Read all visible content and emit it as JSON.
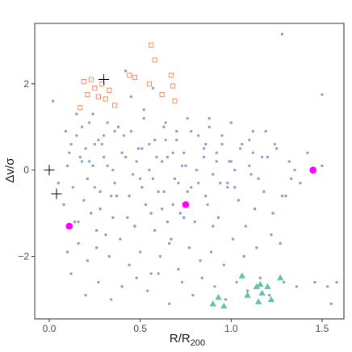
{
  "chart_data": {
    "type": "scatter",
    "xlabel": "R/R",
    "xlabel_sub": "200",
    "ylabel": "Δv/σ",
    "xlim": [
      -0.08,
      1.62
    ],
    "ylim": [
      -3.45,
      3.4
    ],
    "xticks": [
      0.0,
      0.5,
      1.0,
      1.5
    ],
    "xtick_labels": [
      "0.0",
      "0.5",
      "1.0",
      "1.5"
    ],
    "yticks": [
      -2,
      0,
      2
    ],
    "ytick_labels": [
      "−2",
      "0",
      "2"
    ],
    "grid": false,
    "series": [
      {
        "marker": "dot",
        "color": "#8DA0CB",
        "x": [
          0.02,
          0.05,
          0.1,
          0.12,
          0.15,
          0.18,
          0.2,
          0.22,
          0.24,
          0.25,
          0.27,
          0.3,
          0.32,
          0.34,
          0.36,
          0.4,
          0.42,
          0.45,
          0.48,
          0.5,
          0.52,
          0.55,
          0.57,
          0.6,
          0.63,
          0.65,
          0.68,
          0.7,
          0.73,
          0.78,
          0.82,
          0.85,
          0.88,
          0.9,
          0.92,
          0.95,
          1.0,
          1.02,
          1.06,
          1.1,
          1.12,
          1.15,
          1.2,
          1.25,
          1.28,
          1.32,
          1.35,
          1.42,
          1.5,
          0.08,
          0.14,
          0.19,
          0.23,
          0.28,
          0.31,
          0.37,
          0.43,
          0.47,
          0.53,
          0.58,
          0.62,
          0.67,
          0.72,
          0.76,
          0.8,
          0.87,
          0.93,
          0.98,
          1.04,
          1.08,
          1.13,
          1.18,
          1.23,
          1.3,
          1.38,
          0.1,
          0.16,
          0.21,
          0.26,
          0.33,
          0.39,
          0.44,
          0.5,
          0.56,
          0.61,
          0.66,
          0.71,
          0.77,
          0.83,
          0.89,
          0.96,
          1.01,
          1.07,
          1.14,
          1.22,
          1.27,
          0.09,
          0.17,
          0.24,
          0.29,
          0.35,
          0.41,
          0.46,
          0.51,
          0.59,
          0.64,
          0.69,
          0.74,
          0.81,
          0.86,
          0.94,
          0.99,
          1.05,
          1.11,
          1.17,
          1.24,
          1.33,
          0.12,
          0.2,
          0.27,
          0.34,
          0.4,
          0.48,
          0.54,
          0.6,
          0.66,
          0.73,
          0.79,
          0.84,
          0.91,
          0.97,
          1.03,
          1.09,
          1.16,
          1.21,
          1.29,
          1.36,
          1.46,
          1.53,
          1.58,
          0.15,
          0.22,
          0.3,
          0.38,
          0.45,
          0.52,
          0.58,
          0.64,
          0.7,
          0.76,
          0.82,
          0.88,
          0.95,
          1.0,
          1.1,
          1.19,
          0.11,
          0.18,
          0.25,
          0.32,
          0.42,
          0.49,
          0.55,
          0.62,
          0.68,
          0.75,
          0.85,
          0.92,
          1.02,
          1.12,
          0.13,
          0.21,
          0.28,
          0.36,
          0.44,
          0.51,
          0.57,
          0.63,
          0.71,
          0.78,
          0.86,
          0.98,
          0.16,
          0.26,
          0.35,
          0.47,
          0.56,
          0.65,
          0.74,
          0.9,
          1.28,
          1.5,
          1.55
        ],
        "y": [
          1.6,
          -0.3,
          0.1,
          0.6,
          0.8,
          1.0,
          0.5,
          0.2,
          1.3,
          -0.4,
          0.7,
          0.3,
          1.1,
          -0.6,
          0.9,
          0.4,
          2.3,
          1.7,
          0.2,
          -0.2,
          1.4,
          0.6,
          1.9,
          -0.5,
          1.0,
          0.3,
          -0.8,
          0.7,
          0.1,
          0.9,
          -0.3,
          0.5,
          1.2,
          -0.1,
          0.4,
          0.8,
          0.2,
          -0.4,
          0.6,
          0.1,
          0.9,
          -0.2,
          0.3,
          0.5,
          -0.6,
          0.2,
          0.0,
          0.4,
          0.1,
          -0.8,
          -1.2,
          -0.7,
          -1.0,
          -0.9,
          -1.5,
          -0.6,
          -1.1,
          -1.3,
          -0.8,
          -1.4,
          -0.9,
          -1.6,
          -1.0,
          -0.5,
          -1.2,
          -0.8,
          -1.1,
          -0.4,
          -0.7,
          -1.3,
          -0.9,
          -0.5,
          -1.0,
          -0.6,
          -0.3,
          -1.9,
          -1.7,
          -2.1,
          -1.8,
          -2.0,
          -1.6,
          -2.2,
          -1.9,
          -2.4,
          -2.0,
          -1.7,
          -2.3,
          -1.8,
          -2.1,
          -1.9,
          -2.2,
          -1.6,
          -2.0,
          -1.8,
          -1.5,
          -1.7,
          0.9,
          0.3,
          0.1,
          0.6,
          0.0,
          0.8,
          -0.1,
          0.5,
          0.3,
          0.7,
          -0.2,
          0.4,
          0.0,
          0.6,
          -0.3,
          0.2,
          0.5,
          -0.1,
          0.3,
          0.6,
          -0.2,
          -2.4,
          -2.9,
          -2.6,
          -3.0,
          -2.7,
          -2.5,
          -2.8,
          -2.4,
          -3.1,
          -2.6,
          -2.9,
          -2.5,
          -2.7,
          -3.0,
          -2.6,
          -2.8,
          -2.5,
          -2.9,
          -2.6,
          -2.7,
          -2.6,
          -2.7,
          -2.6,
          1.3,
          1.1,
          0.8,
          1.0,
          0.9,
          1.2,
          0.7,
          1.1,
          0.9,
          1.2,
          0.8,
          1.0,
          0.6,
          1.1,
          0.7,
          0.9,
          0.4,
          0.2,
          0.6,
          0.1,
          0.3,
          0.5,
          0.0,
          0.2,
          0.4,
          0.1,
          0.3,
          0.2,
          0.0,
          0.4,
          -0.4,
          -0.2,
          -0.5,
          -0.3,
          -0.6,
          -0.4,
          -0.2,
          -0.5,
          -0.3,
          -0.4,
          -0.6,
          -0.3,
          -1.2,
          -1.4,
          -1.1,
          -1.3,
          -1.0,
          -1.2,
          -1.1,
          -1.3,
          3.15,
          1.75,
          -3.1
        ]
      },
      {
        "marker": "open-square",
        "color": "#FC8D62",
        "x": [
          0.17,
          0.19,
          0.21,
          0.23,
          0.25,
          0.27,
          0.29,
          0.31,
          0.33,
          0.36,
          0.44,
          0.47,
          0.55,
          0.56,
          0.58,
          0.62,
          0.67,
          0.68,
          0.69
        ],
        "y": [
          1.45,
          2.05,
          1.75,
          2.1,
          1.9,
          1.7,
          2.0,
          1.65,
          1.85,
          1.5,
          2.2,
          2.15,
          2.0,
          2.9,
          2.55,
          1.75,
          2.2,
          1.95,
          1.6
        ]
      },
      {
        "marker": "filled-triangle",
        "color": "#66C2A5",
        "x": [
          0.9,
          0.93,
          0.96,
          1.06,
          1.09,
          1.14,
          1.15,
          1.16,
          1.17,
          1.2,
          1.22,
          1.27
        ],
        "y": [
          -3.1,
          -2.95,
          -3.15,
          -2.45,
          -2.9,
          -2.7,
          -3.05,
          -2.65,
          -2.85,
          -2.7,
          -3.0,
          -2.5
        ]
      },
      {
        "marker": "filled-circle",
        "color": "#FF00FF",
        "x": [
          0.11,
          0.75,
          1.45
        ],
        "y": [
          -1.3,
          -0.8,
          0.0
        ]
      },
      {
        "marker": "cross",
        "color": "#000000",
        "x": [
          0.0,
          0.04,
          0.3
        ],
        "y": [
          0.0,
          -0.55,
          2.1
        ]
      }
    ]
  }
}
